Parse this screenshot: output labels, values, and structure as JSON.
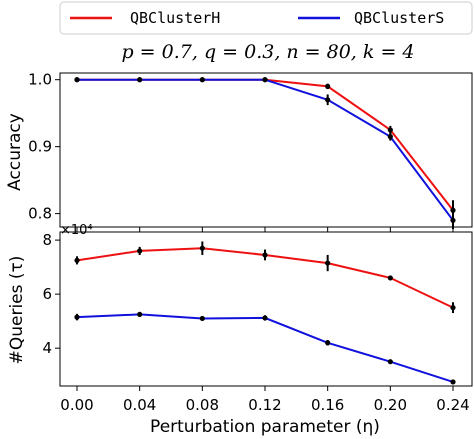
{
  "legend": {
    "position": "top-center"
  },
  "subtitle": "p = 0.7, q = 0.3, n = 80, k = 4",
  "colors": {
    "QBClusterH": "#ee1111",
    "QBClusterS": "#1111dd"
  },
  "chart_data": [
    {
      "type": "line",
      "xlabel": "",
      "ylabel": "Accuracy",
      "x": [
        0.0,
        0.04,
        0.08,
        0.12,
        0.16,
        0.2,
        0.24
      ],
      "x_tick_labels": [
        "0.00",
        "0.04",
        "0.08",
        "0.12",
        "0.16",
        "0.20",
        "0.24"
      ],
      "ylim": [
        0.78,
        1.01
      ],
      "y_ticks": [
        0.8,
        0.9,
        1.0
      ],
      "y_tick_labels": [
        "0.8",
        "0.9",
        "1.0"
      ],
      "series": [
        {
          "name": "QBClusterH",
          "color": "#ee1111",
          "values": [
            1.0,
            1.0,
            1.0,
            1.0,
            0.99,
            0.925,
            0.805
          ],
          "errors": [
            0,
            0,
            0,
            0,
            0.004,
            0.006,
            0.015
          ]
        },
        {
          "name": "QBClusterS",
          "color": "#1111dd",
          "values": [
            1.0,
            1.0,
            1.0,
            1.0,
            0.97,
            0.915,
            0.79
          ],
          "errors": [
            0,
            0,
            0,
            0,
            0.008,
            0.006,
            0.013
          ]
        }
      ]
    },
    {
      "type": "line",
      "xlabel": "Perturbation parameter (η)",
      "ylabel": "#Queries (τ)",
      "axis_multiplier": "×10⁴",
      "x": [
        0.0,
        0.04,
        0.08,
        0.12,
        0.16,
        0.2,
        0.24
      ],
      "x_tick_labels": [
        "0.00",
        "0.04",
        "0.08",
        "0.12",
        "0.16",
        "0.20",
        "0.24"
      ],
      "ylim": [
        2.6,
        8.3
      ],
      "y_ticks": [
        4,
        6,
        8
      ],
      "y_tick_labels": [
        "4",
        "6",
        "8"
      ],
      "series": [
        {
          "name": "QBClusterH",
          "color": "#ee1111",
          "values": [
            7.25,
            7.6,
            7.7,
            7.45,
            7.15,
            6.6,
            5.5
          ],
          "errors": [
            0.15,
            0.15,
            0.25,
            0.2,
            0.3,
            0.08,
            0.2
          ]
        },
        {
          "name": "QBClusterS",
          "color": "#1111dd",
          "values": [
            5.15,
            5.25,
            5.1,
            5.12,
            4.2,
            3.5,
            2.75
          ],
          "errors": [
            0.12,
            0.08,
            0.05,
            0.1,
            0.1,
            0.06,
            0.08
          ]
        }
      ]
    }
  ]
}
